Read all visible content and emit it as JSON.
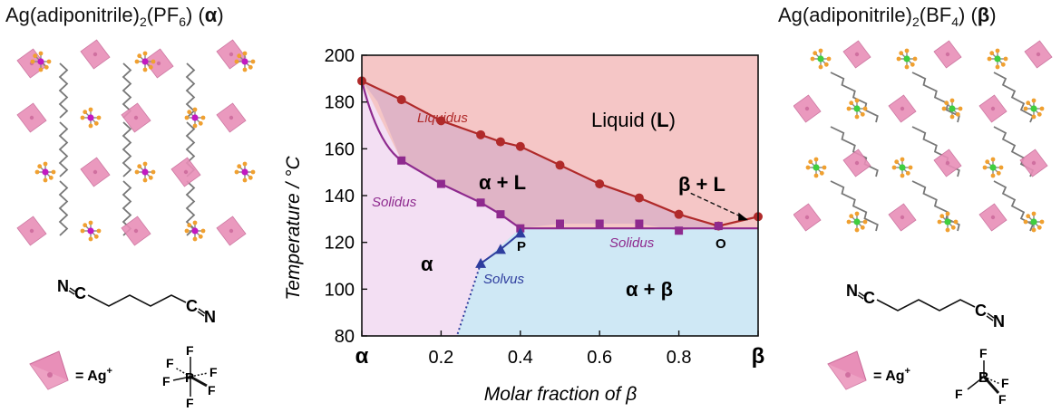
{
  "left_panel": {
    "title_main": "Ag(adiponitrile)",
    "title_sub": "2",
    "title_mid": "(PF",
    "title_sub2": "6",
    "title_end": ") (",
    "title_symbol": "α",
    "title_close": ")",
    "n1": "N",
    "c1": "C",
    "c2": "C",
    "n2": "N",
    "legend_eq": "= Ag",
    "legend_sup": "+",
    "anion_center": "P",
    "anion_atom": "F"
  },
  "right_panel": {
    "title_main": "Ag(adiponitrile)",
    "title_sub": "2",
    "title_mid": "(BF",
    "title_sub2": "4",
    "title_end": ") (",
    "title_symbol": "β",
    "title_close": ")",
    "n1": "N",
    "c1": "C",
    "c2": "C",
    "n2": "N",
    "legend_eq": "= Ag",
    "legend_sup": "+",
    "anion_center": "B",
    "anion_atom": "F"
  },
  "colors": {
    "liquid_region": "#f5c6c6",
    "alpha_region": "#f3dff3",
    "alpha_beta_region": "#cfe8f5",
    "alpha_l_region": "#e0b4c6",
    "liquidus": "#b02a2a",
    "solidus": "#8e2a8e",
    "solvus": "#2e3d9e",
    "ag_polyhedron": "#e88fb8",
    "pf6_p": "#c218c2",
    "bf4_b": "#3fcf3f",
    "fluorine": "#f0a030"
  },
  "chart_data": {
    "type": "line",
    "xlabel": "Molar fraction of β",
    "ylabel": "Temperature / °C",
    "xlim": [
      0,
      1
    ],
    "ylim": [
      80,
      200
    ],
    "x_ticks": [
      {
        "value": 0,
        "label": "α"
      },
      {
        "value": 0.2,
        "label": "0.2"
      },
      {
        "value": 0.4,
        "label": "0.4"
      },
      {
        "value": 0.6,
        "label": "0.6"
      },
      {
        "value": 0.8,
        "label": "0.8"
      },
      {
        "value": 1,
        "label": "β"
      }
    ],
    "y_ticks": [
      80,
      100,
      120,
      140,
      160,
      180,
      200
    ],
    "series": [
      {
        "name": "Liquidus",
        "marker": "circle",
        "color": "#b02a2a",
        "x": [
          0,
          0.1,
          0.2,
          0.3,
          0.35,
          0.4,
          0.5,
          0.6,
          0.7,
          0.8,
          0.9,
          1.0
        ],
        "y": [
          189,
          181,
          172,
          166,
          163,
          161,
          153,
          145,
          139,
          132,
          127,
          131
        ]
      },
      {
        "name": "Solidus",
        "marker": "square",
        "color": "#8e2a8e",
        "x": [
          0.1,
          0.2,
          0.3,
          0.35,
          0.4,
          0.5,
          0.6,
          0.7,
          0.8,
          0.9
        ],
        "y": [
          155,
          145,
          137,
          132,
          126,
          128,
          128,
          128,
          125,
          127
        ]
      },
      {
        "name": "Solvus",
        "marker": "triangle",
        "color": "#2e3d9e",
        "x": [
          0.3,
          0.35,
          0.4
        ],
        "y": [
          111,
          117,
          124
        ]
      }
    ],
    "region_labels": {
      "liquid_a": "Liquid (",
      "liquid_b": "L",
      "liquid_c": ")",
      "alpha_l": "α + L",
      "beta_l": "β + L",
      "alpha": "α",
      "alpha_beta": "α + β"
    },
    "curve_labels": {
      "liquidus": "Liquidus",
      "solidus_left": "Solidus",
      "solidus_right": "Solidus",
      "solvus": "Solvus"
    },
    "point_labels": {
      "P": "P",
      "O": "O"
    }
  }
}
